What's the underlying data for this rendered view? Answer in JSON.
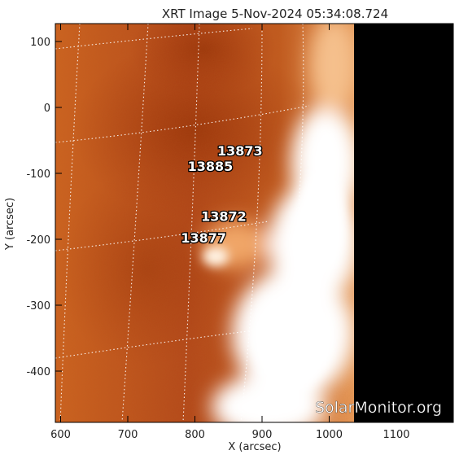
{
  "title": "XRT Image   5-Nov-2024 05:34:08.724",
  "xlabel": "X (arcsec)",
  "ylabel": "Y (arcsec)",
  "watermark": "SolarMonitor.org",
  "axes": {
    "x_ticks": [
      "600",
      "700",
      "800",
      "900",
      "1000",
      "1100"
    ],
    "y_ticks": [
      "100",
      "0",
      "-100",
      "-200",
      "-300",
      "-400"
    ]
  },
  "regions": [
    {
      "id": "13873",
      "x": 867,
      "y": -73
    },
    {
      "id": "13885",
      "x": 823,
      "y": -96
    },
    {
      "id": "13872",
      "x": 843,
      "y": -172
    },
    {
      "id": "13877",
      "x": 813,
      "y": -205
    }
  ],
  "colors": {
    "background": "#ffffff",
    "image_dark": "#a83c10",
    "image_mid": "#cf6420",
    "image_bright": "#ffffff",
    "off_disk": "#000000",
    "grid": "#ffffff",
    "label_fill": "#ffffff",
    "label_outline": "#000000",
    "text": "#222222"
  }
}
